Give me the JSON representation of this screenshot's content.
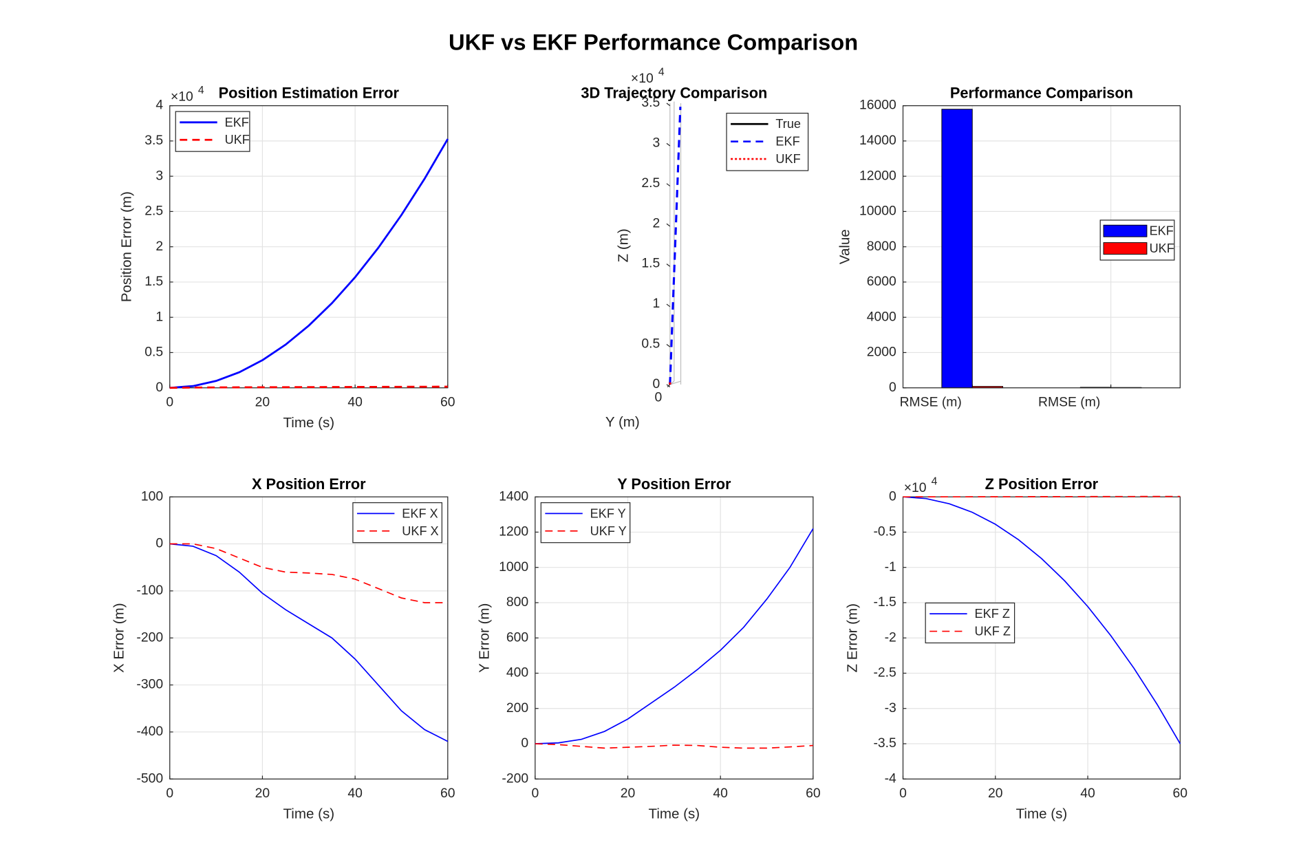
{
  "title": "UKF vs EKF Performance Comparison",
  "chart_data": [
    {
      "type": "line",
      "title": "Position Estimation Error",
      "xlabel": "Time (s)",
      "ylabel": "Position Error (m)",
      "x": [
        0,
        5,
        10,
        15,
        20,
        25,
        30,
        35,
        40,
        45,
        50,
        55,
        60
      ],
      "series": [
        {
          "name": "EKF",
          "color": "#0000ff",
          "dash": "solid",
          "values": [
            0,
            245,
            980,
            2205,
            3920,
            6125,
            8820,
            12005,
            15680,
            19845,
            24500,
            29645,
            35280
          ]
        },
        {
          "name": "UKF",
          "color": "#ff0000",
          "dash": "dash",
          "values": [
            0,
            40,
            60,
            75,
            85,
            95,
            105,
            115,
            125,
            135,
            145,
            155,
            165
          ]
        }
      ],
      "xlim": [
        0,
        60
      ],
      "xticks": [
        0,
        20,
        40,
        60
      ],
      "ylim": [
        0,
        40000
      ],
      "yticks": [
        0,
        {
          "value": 5000,
          "label": "0.5"
        },
        {
          "value": 10000,
          "label": "1"
        },
        {
          "value": 15000,
          "label": "1.5"
        },
        {
          "value": 20000,
          "label": "2"
        },
        {
          "value": 25000,
          "label": "2.5"
        },
        {
          "value": 30000,
          "label": "3"
        },
        {
          "value": 35000,
          "label": "3.5"
        },
        {
          "value": 40000,
          "label": "4"
        }
      ],
      "y_multiplier": "×10",
      "y_exponent": "4",
      "grid": true,
      "legend": "northwest"
    },
    {
      "type": "trajectory3d",
      "title": "3D Trajectory Comparison",
      "xlabel": "Y (m)",
      "ylabel": "Z (m)",
      "series": [
        {
          "name": "True",
          "color": "#000000",
          "dash": "solid",
          "x": [
            0,
            0,
            0,
            0,
            0,
            0,
            0,
            0,
            0,
            0,
            0,
            0,
            0
          ],
          "values": [
            0,
            25,
            50,
            75,
            100,
            125,
            150,
            175,
            200,
            225,
            250,
            275,
            300
          ]
        },
        {
          "name": "EKF",
          "color": "#0000ff",
          "dash": "dash",
          "x": [
            0,
            10,
            40,
            90,
            160,
            250,
            360,
            490,
            640,
            810,
            1000,
            1210,
            1440
          ],
          "values": [
            0,
            240,
            960,
            2160,
            3840,
            6000,
            8640,
            11760,
            15360,
            19440,
            24000,
            29040,
            34560
          ]
        },
        {
          "name": "UKF",
          "color": "#ff0000",
          "dash": "dot",
          "x": [
            0,
            1,
            2,
            3,
            4,
            5,
            6,
            7,
            8,
            9,
            10,
            11,
            12
          ],
          "values": [
            0,
            30,
            60,
            90,
            120,
            150,
            180,
            210,
            240,
            270,
            300,
            330,
            360
          ]
        }
      ],
      "xlim": [
        0,
        1500
      ],
      "xticks": [
        0
      ],
      "ylim": [
        0,
        35000
      ],
      "yticks": [
        0,
        {
          "value": 5000,
          "label": "0.5"
        },
        {
          "value": 10000,
          "label": "1"
        },
        {
          "value": 15000,
          "label": "1.5"
        },
        {
          "value": 20000,
          "label": "2"
        },
        {
          "value": 25000,
          "label": "2.5"
        },
        {
          "value": 30000,
          "label": "3"
        },
        {
          "value": 35000,
          "label": "3.5"
        }
      ],
      "y_multiplier": "×10",
      "y_exponent": "4",
      "legend": "northeast"
    },
    {
      "type": "bar",
      "title": "Performance Comparison",
      "ylabel": "Value",
      "categories": [
        "RMSE (m)",
        "RMSE (m)"
      ],
      "series": [
        {
          "name": "EKF",
          "color": "#0000ff",
          "values": [
            15800,
            30
          ]
        },
        {
          "name": "UKF",
          "color": "#ff0000",
          "values": [
            80,
            20
          ]
        }
      ],
      "ylim": [
        0,
        16000
      ],
      "yticks": [
        0,
        2000,
        4000,
        6000,
        8000,
        10000,
        12000,
        14000,
        16000
      ],
      "grid": true,
      "legend": "east"
    },
    {
      "type": "line",
      "title": "X Position Error",
      "xlabel": "Time (s)",
      "ylabel": "X Error (m)",
      "x": [
        0,
        5,
        10,
        15,
        20,
        25,
        30,
        35,
        40,
        45,
        50,
        55,
        60
      ],
      "series": [
        {
          "name": "EKF X",
          "color": "#0000ff",
          "dash": "solid",
          "values": [
            0,
            -5,
            -25,
            -60,
            -105,
            -140,
            -170,
            -200,
            -245,
            -300,
            -355,
            -395,
            -420
          ]
        },
        {
          "name": "UKF X",
          "color": "#ff0000",
          "dash": "dash",
          "values": [
            0,
            0,
            -10,
            -30,
            -50,
            -60,
            -62,
            -65,
            -75,
            -95,
            -115,
            -125,
            -125
          ]
        }
      ],
      "xlim": [
        0,
        60
      ],
      "xticks": [
        0,
        20,
        40,
        60
      ],
      "ylim": [
        -500,
        100
      ],
      "yticks": [
        -500,
        -400,
        -300,
        -200,
        -100,
        0,
        100
      ],
      "grid": true,
      "legend": "northeast"
    },
    {
      "type": "line",
      "title": "Y Position Error",
      "xlabel": "Time (s)",
      "ylabel": "Y Error (m)",
      "x": [
        0,
        5,
        10,
        15,
        20,
        25,
        30,
        35,
        40,
        45,
        50,
        55,
        60
      ],
      "series": [
        {
          "name": "EKF Y",
          "color": "#0000ff",
          "dash": "solid",
          "values": [
            0,
            5,
            25,
            70,
            140,
            230,
            320,
            420,
            530,
            660,
            820,
            1000,
            1220
          ]
        },
        {
          "name": "UKF Y",
          "color": "#ff0000",
          "dash": "dash",
          "values": [
            0,
            -5,
            -15,
            -25,
            -20,
            -15,
            -8,
            -10,
            -20,
            -25,
            -25,
            -18,
            -10
          ]
        }
      ],
      "xlim": [
        0,
        60
      ],
      "xticks": [
        0,
        20,
        40,
        60
      ],
      "ylim": [
        -200,
        1400
      ],
      "yticks": [
        -200,
        0,
        200,
        400,
        600,
        800,
        1000,
        1200,
        1400
      ],
      "grid": true,
      "legend": "northwest"
    },
    {
      "type": "line",
      "title": "Z Position Error",
      "xlabel": "Time (s)",
      "ylabel": "Z Error (m)",
      "x": [
        0,
        5,
        10,
        15,
        20,
        25,
        30,
        35,
        40,
        45,
        50,
        55,
        60
      ],
      "series": [
        {
          "name": "EKF Z",
          "color": "#0000ff",
          "dash": "solid",
          "values": [
            0,
            -243,
            -972,
            -2187,
            -3888,
            -6075,
            -8748,
            -11907,
            -15552,
            -19683,
            -24300,
            -29403,
            -34992
          ]
        },
        {
          "name": "UKF Z",
          "color": "#ff0000",
          "dash": "dash",
          "values": [
            0,
            5,
            10,
            15,
            20,
            25,
            30,
            35,
            40,
            45,
            50,
            55,
            60
          ]
        }
      ],
      "xlim": [
        0,
        60
      ],
      "xticks": [
        0,
        20,
        40,
        60
      ],
      "ylim": [
        -40000,
        0
      ],
      "yticks": [
        {
          "value": -40000,
          "label": "-4"
        },
        {
          "value": -35000,
          "label": "-3.5"
        },
        {
          "value": -30000,
          "label": "-3"
        },
        {
          "value": -25000,
          "label": "-2.5"
        },
        {
          "value": -20000,
          "label": "-2"
        },
        {
          "value": -15000,
          "label": "-1.5"
        },
        {
          "value": -10000,
          "label": "-1"
        },
        {
          "value": -5000,
          "label": "-0.5"
        },
        0
      ],
      "y_multiplier": "×10",
      "y_exponent": "4",
      "grid": true,
      "legend": "west"
    }
  ]
}
